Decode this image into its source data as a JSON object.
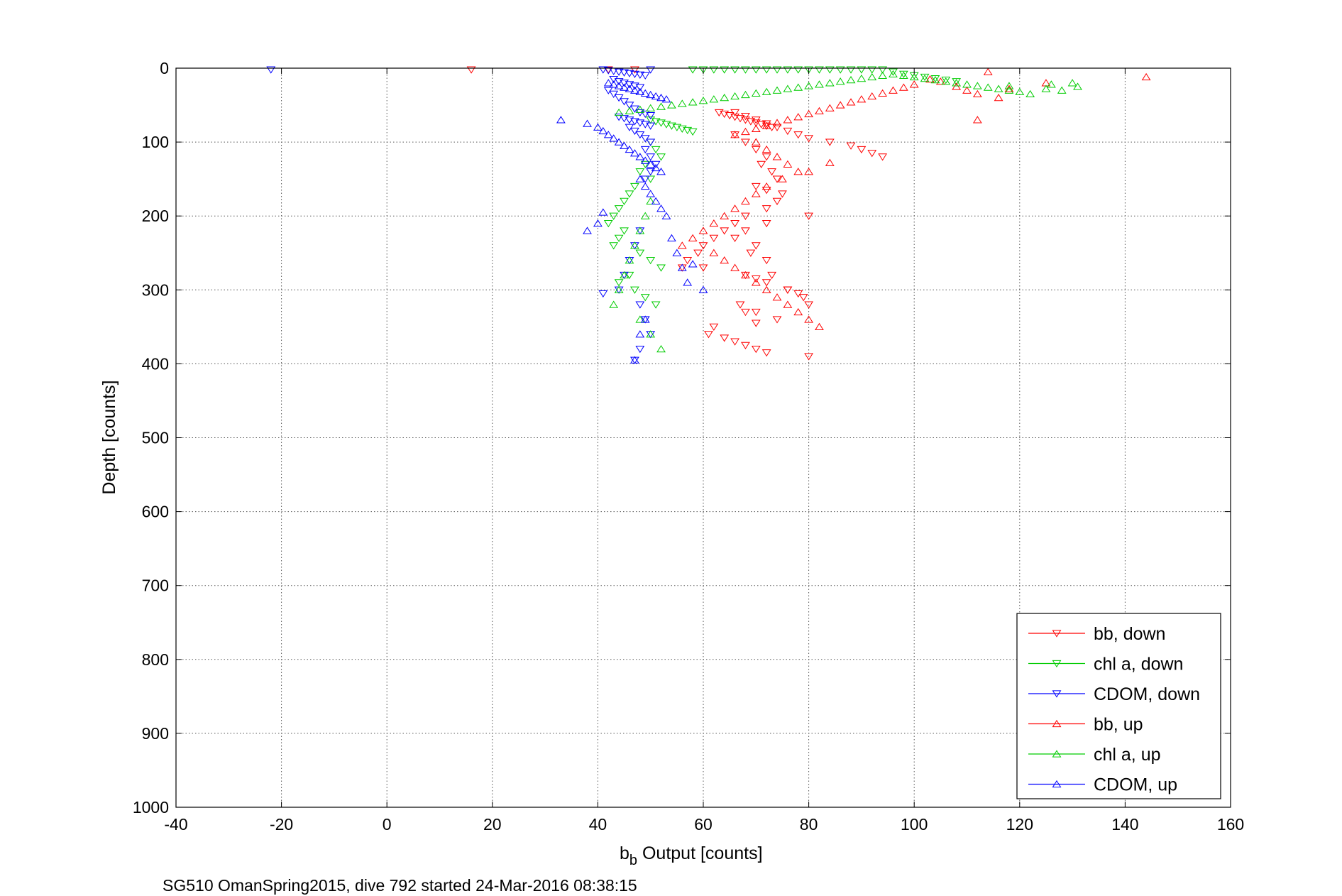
{
  "chart_data": {
    "type": "scatter",
    "xlabel_main": "b",
    "xlabel_sub": "b",
    "xlabel_rest": " Output [counts]",
    "ylabel": "Depth [counts]",
    "xlim": [
      -40,
      160
    ],
    "ylim": [
      0,
      1000
    ],
    "y_reversed": true,
    "grid": true,
    "legend_position": "bottom-right",
    "xticks": [
      "-40",
      "-20",
      "0",
      "20",
      "40",
      "60",
      "80",
      "100",
      "120",
      "140",
      "160"
    ],
    "yticks": [
      "0",
      "100",
      "200",
      "300",
      "400",
      "500",
      "600",
      "700",
      "800",
      "900",
      "1000"
    ],
    "series": [
      {
        "name": "bb, down",
        "color": "#ff0000",
        "marker": "triangle-down",
        "x": [
          16,
          42,
          47,
          66,
          68,
          70,
          72,
          74,
          76,
          78,
          80,
          84,
          88,
          90,
          92,
          94,
          63,
          64,
          65,
          66,
          67,
          68,
          69,
          70,
          71,
          72,
          73,
          66,
          68,
          70,
          72,
          71,
          73,
          74,
          70,
          72,
          75,
          74,
          72,
          68,
          66,
          64,
          62,
          60,
          59,
          57,
          56,
          68,
          70,
          72,
          76,
          78,
          79,
          80,
          68,
          70,
          62,
          61,
          64,
          66,
          68,
          70,
          72,
          80,
          67,
          70,
          74,
          76,
          73,
          72,
          69,
          60,
          70,
          66,
          68,
          72,
          80
        ],
        "y": [
          2,
          2,
          2,
          60,
          65,
          70,
          75,
          80,
          85,
          90,
          95,
          100,
          105,
          110,
          115,
          120,
          60,
          62,
          64,
          66,
          68,
          70,
          72,
          74,
          76,
          78,
          80,
          90,
          100,
          110,
          120,
          130,
          140,
          150,
          160,
          165,
          170,
          180,
          190,
          200,
          210,
          220,
          230,
          240,
          250,
          260,
          270,
          280,
          285,
          290,
          300,
          305,
          310,
          320,
          330,
          345,
          350,
          360,
          365,
          370,
          375,
          380,
          385,
          390,
          320,
          330,
          340,
          300,
          280,
          260,
          250,
          270,
          240,
          230,
          220,
          210,
          200
        ]
      },
      {
        "name": "chl a, down",
        "color": "#00cc00",
        "marker": "triangle-down",
        "x": [
          58,
          60,
          62,
          64,
          66,
          68,
          70,
          72,
          74,
          76,
          78,
          80,
          82,
          84,
          86,
          88,
          90,
          92,
          94,
          96,
          98,
          100,
          102,
          104,
          106,
          108,
          50,
          51,
          52,
          53,
          54,
          55,
          56,
          57,
          58,
          50,
          51,
          52,
          49,
          48,
          50,
          47,
          46,
          45,
          44,
          43,
          42,
          45,
          44,
          43,
          48,
          50,
          52,
          46,
          44,
          47,
          49,
          51
        ],
        "y": [
          2,
          2,
          2,
          2,
          2,
          2,
          2,
          2,
          2,
          2,
          2,
          2,
          2,
          2,
          2,
          2,
          2,
          2,
          2,
          5,
          8,
          10,
          12,
          14,
          16,
          18,
          70,
          72,
          74,
          76,
          78,
          80,
          82,
          84,
          86,
          100,
          110,
          120,
          130,
          140,
          150,
          160,
          170,
          180,
          190,
          200,
          210,
          220,
          230,
          240,
          250,
          260,
          270,
          280,
          290,
          300,
          310,
          320
        ]
      },
      {
        "name": "CDOM, down",
        "color": "#0000ff",
        "marker": "triangle-down",
        "x": [
          -22,
          41,
          42,
          43,
          44,
          45,
          46,
          47,
          48,
          49,
          50,
          43,
          44,
          45,
          46,
          47,
          48,
          42,
          43,
          44,
          45,
          46,
          47,
          48,
          49,
          50,
          44,
          45,
          46,
          47,
          48,
          49,
          50,
          46,
          47,
          48,
          49,
          50,
          49,
          50,
          51,
          50,
          49,
          48,
          47,
          46,
          45,
          44,
          48,
          49,
          50,
          41,
          48,
          47
        ],
        "y": [
          2,
          2,
          3,
          4,
          5,
          6,
          7,
          8,
          9,
          10,
          2,
          15,
          18,
          20,
          22,
          24,
          26,
          30,
          35,
          40,
          45,
          50,
          55,
          60,
          62,
          64,
          66,
          68,
          70,
          72,
          74,
          76,
          78,
          80,
          85,
          90,
          95,
          100,
          110,
          120,
          130,
          140,
          150,
          220,
          240,
          260,
          280,
          300,
          320,
          340,
          360,
          305,
          380,
          395
        ]
      },
      {
        "name": "bb, up",
        "color": "#ff0000",
        "marker": "triangle-up",
        "x": [
          144,
          125,
          118,
          114,
          112,
          110,
          108,
          105,
          103,
          100,
          98,
          96,
          94,
          92,
          90,
          88,
          86,
          84,
          82,
          80,
          78,
          76,
          74,
          72,
          70,
          68,
          66,
          112,
          116,
          84,
          80,
          75,
          72,
          70,
          68,
          66,
          64,
          62,
          60,
          58,
          56,
          62,
          64,
          66,
          68,
          70,
          72,
          74,
          76,
          78,
          80,
          82,
          70,
          72,
          74,
          76,
          78
        ],
        "y": [
          12,
          20,
          28,
          5,
          70,
          30,
          25,
          18,
          15,
          22,
          26,
          30,
          34,
          38,
          42,
          46,
          50,
          54,
          58,
          62,
          66,
          70,
          74,
          78,
          82,
          86,
          90,
          35,
          40,
          128,
          140,
          150,
          160,
          170,
          180,
          190,
          200,
          210,
          220,
          230,
          240,
          250,
          260,
          270,
          280,
          290,
          300,
          310,
          320,
          330,
          340,
          350,
          100,
          110,
          120,
          130,
          140
        ]
      },
      {
        "name": "chl a, up",
        "color": "#00cc00",
        "marker": "triangle-up",
        "x": [
          131,
          128,
          125,
          122,
          120,
          118,
          116,
          114,
          112,
          110,
          108,
          106,
          104,
          102,
          100,
          98,
          96,
          94,
          92,
          90,
          88,
          86,
          84,
          82,
          80,
          78,
          76,
          74,
          72,
          70,
          68,
          66,
          64,
          62,
          60,
          58,
          56,
          54,
          52,
          50,
          48,
          46,
          44,
          130,
          126,
          118,
          50,
          49,
          48,
          47,
          46,
          45,
          44,
          43,
          48,
          50,
          52
        ],
        "y": [
          25,
          30,
          28,
          35,
          32,
          30,
          28,
          26,
          24,
          22,
          20,
          18,
          16,
          14,
          12,
          10,
          8,
          10,
          12,
          14,
          16,
          18,
          20,
          22,
          24,
          26,
          28,
          30,
          32,
          34,
          36,
          38,
          40,
          42,
          44,
          46,
          48,
          50,
          52,
          54,
          56,
          58,
          60,
          20,
          22,
          24,
          180,
          200,
          220,
          240,
          260,
          280,
          300,
          320,
          340,
          360,
          380
        ]
      },
      {
        "name": "CDOM, up",
        "color": "#0000ff",
        "marker": "triangle-up",
        "x": [
          33,
          38,
          40,
          41,
          42,
          43,
          44,
          45,
          46,
          47,
          48,
          49,
          50,
          51,
          52,
          42,
          43,
          44,
          45,
          46,
          47,
          48,
          49,
          50,
          51,
          52,
          53,
          41,
          40,
          38,
          48,
          49,
          50,
          51,
          52,
          53,
          54,
          55,
          56,
          57,
          58,
          60,
          47,
          48,
          49
        ],
        "y": [
          70,
          75,
          80,
          85,
          90,
          95,
          100,
          105,
          110,
          115,
          120,
          125,
          130,
          135,
          140,
          20,
          22,
          24,
          26,
          28,
          30,
          32,
          34,
          36,
          38,
          40,
          42,
          195,
          210,
          220,
          150,
          160,
          170,
          180,
          190,
          200,
          230,
          250,
          270,
          290,
          265,
          300,
          395,
          360,
          340
        ]
      }
    ]
  },
  "footer": {
    "caption": "SG510 OmanSpring2015, dive 792 started 24-Mar-2016 08:38:15"
  }
}
